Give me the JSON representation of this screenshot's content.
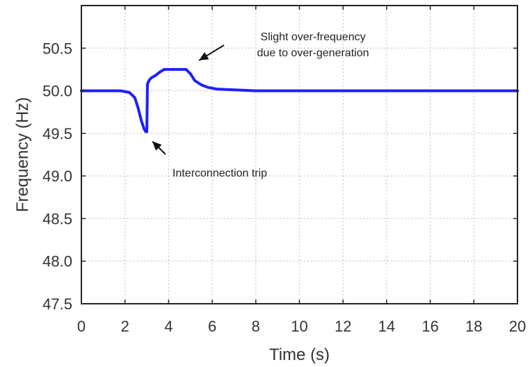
{
  "chart_data": {
    "type": "line",
    "title": "",
    "xlabel": "Time (s)",
    "ylabel": "Frequency (Hz)",
    "xlim": [
      0,
      20
    ],
    "ylim": [
      47.5,
      51.0
    ],
    "xticks": [
      0,
      2,
      4,
      6,
      8,
      10,
      12,
      14,
      16,
      18,
      20
    ],
    "xtick_labels": [
      "0",
      "2",
      "4",
      "6",
      "8",
      "10",
      "12",
      "14",
      "16",
      "18",
      "20"
    ],
    "yticks": [
      47.5,
      48.0,
      48.5,
      49.0,
      49.5,
      50.0,
      50.5
    ],
    "ytick_labels": [
      "47.5",
      "48.0",
      "48.5",
      "49.0",
      "49.5",
      "50.0",
      "50.5"
    ],
    "grid": true,
    "series": [
      {
        "color": "#1f1fff",
        "x": [
          0,
          1.8,
          2.2,
          2.45,
          2.6,
          2.75,
          2.88,
          2.95,
          3.0,
          3.03,
          3.1,
          3.2,
          3.4,
          3.6,
          3.8,
          4.0,
          4.4,
          4.8,
          5.0,
          5.2,
          5.5,
          5.8,
          6.2,
          7.0,
          8.0,
          10.0,
          14.0,
          20.0
        ],
        "y": [
          50.0,
          50.0,
          49.98,
          49.92,
          49.8,
          49.65,
          49.55,
          49.52,
          49.52,
          50.08,
          50.12,
          50.15,
          50.18,
          50.22,
          50.25,
          50.25,
          50.25,
          50.25,
          50.2,
          50.12,
          50.07,
          50.04,
          50.02,
          50.01,
          50.0,
          50.0,
          50.0,
          50.0
        ]
      }
    ],
    "annotations": [
      {
        "text_lines": [
          "Slight over-frequency",
          "due to over-generation"
        ],
        "target": [
          5.3,
          50.25
        ]
      },
      {
        "text_lines": [
          "Interconnection trip"
        ],
        "target": [
          3.0,
          49.52
        ]
      }
    ]
  }
}
